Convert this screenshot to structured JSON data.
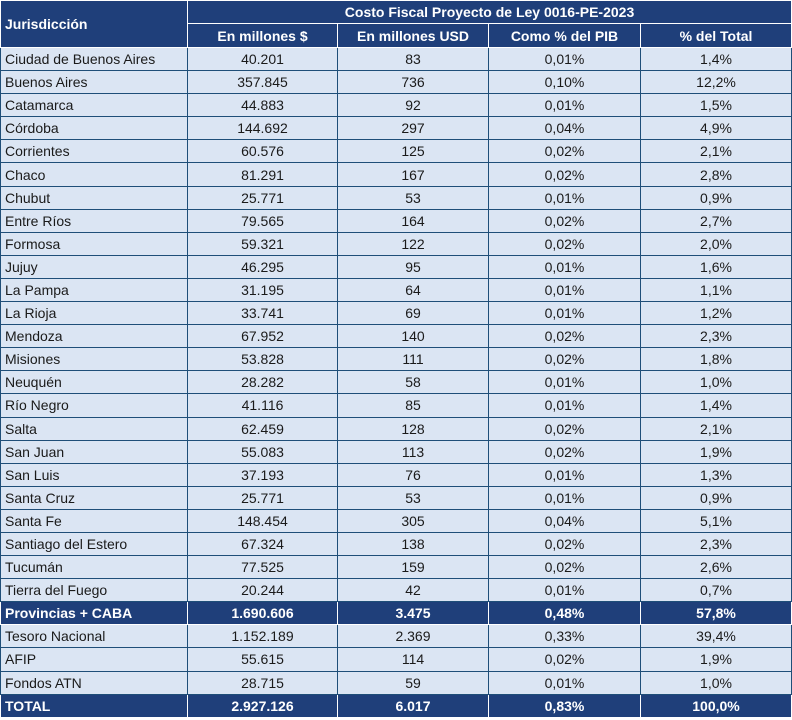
{
  "header": {
    "jurisdiction_label": "Jurisdicción",
    "group_title": "Costo Fiscal Proyecto de Ley 0016-PE-2023",
    "columns": [
      "En millones $",
      "En millones USD",
      "Como % del PIB",
      "% del Total"
    ]
  },
  "rows": [
    {
      "name": "Ciudad de Buenos Aires",
      "ars": "40.201",
      "usd": "83",
      "pib": "0,01%",
      "total": "1,4%"
    },
    {
      "name": "Buenos Aires",
      "ars": "357.845",
      "usd": "736",
      "pib": "0,10%",
      "total": "12,2%"
    },
    {
      "name": "Catamarca",
      "ars": "44.883",
      "usd": "92",
      "pib": "0,01%",
      "total": "1,5%"
    },
    {
      "name": "Córdoba",
      "ars": "144.692",
      "usd": "297",
      "pib": "0,04%",
      "total": "4,9%"
    },
    {
      "name": "Corrientes",
      "ars": "60.576",
      "usd": "125",
      "pib": "0,02%",
      "total": "2,1%"
    },
    {
      "name": "Chaco",
      "ars": "81.291",
      "usd": "167",
      "pib": "0,02%",
      "total": "2,8%"
    },
    {
      "name": "Chubut",
      "ars": "25.771",
      "usd": "53",
      "pib": "0,01%",
      "total": "0,9%"
    },
    {
      "name": "Entre Ríos",
      "ars": "79.565",
      "usd": "164",
      "pib": "0,02%",
      "total": "2,7%"
    },
    {
      "name": "Formosa",
      "ars": "59.321",
      "usd": "122",
      "pib": "0,02%",
      "total": "2,0%"
    },
    {
      "name": "Jujuy",
      "ars": "46.295",
      "usd": "95",
      "pib": "0,01%",
      "total": "1,6%"
    },
    {
      "name": "La Pampa",
      "ars": "31.195",
      "usd": "64",
      "pib": "0,01%",
      "total": "1,1%"
    },
    {
      "name": "La Rioja",
      "ars": "33.741",
      "usd": "69",
      "pib": "0,01%",
      "total": "1,2%"
    },
    {
      "name": "Mendoza",
      "ars": "67.952",
      "usd": "140",
      "pib": "0,02%",
      "total": "2,3%"
    },
    {
      "name": "Misiones",
      "ars": "53.828",
      "usd": "111",
      "pib": "0,02%",
      "total": "1,8%"
    },
    {
      "name": "Neuquén",
      "ars": "28.282",
      "usd": "58",
      "pib": "0,01%",
      "total": "1,0%"
    },
    {
      "name": "Río Negro",
      "ars": "41.116",
      "usd": "85",
      "pib": "0,01%",
      "total": "1,4%"
    },
    {
      "name": "Salta",
      "ars": "62.459",
      "usd": "128",
      "pib": "0,02%",
      "total": "2,1%"
    },
    {
      "name": "San Juan",
      "ars": "55.083",
      "usd": "113",
      "pib": "0,02%",
      "total": "1,9%"
    },
    {
      "name": "San Luis",
      "ars": "37.193",
      "usd": "76",
      "pib": "0,01%",
      "total": "1,3%"
    },
    {
      "name": "Santa Cruz",
      "ars": "25.771",
      "usd": "53",
      "pib": "0,01%",
      "total": "0,9%"
    },
    {
      "name": "Santa Fe",
      "ars": "148.454",
      "usd": "305",
      "pib": "0,04%",
      "total": "5,1%"
    },
    {
      "name": "Santiago del Estero",
      "ars": "67.324",
      "usd": "138",
      "pib": "0,02%",
      "total": "2,3%"
    },
    {
      "name": "Tucumán",
      "ars": "77.525",
      "usd": "159",
      "pib": "0,02%",
      "total": "2,6%"
    },
    {
      "name": "Tierra del Fuego",
      "ars": "20.244",
      "usd": "42",
      "pib": "0,01%",
      "total": "0,7%"
    }
  ],
  "subtotal": {
    "name": "Provincias + CABA",
    "ars": "1.690.606",
    "usd": "3.475",
    "pib": "0,48%",
    "total": "57,8%"
  },
  "national_rows": [
    {
      "name": "Tesoro Nacional",
      "ars": "1.152.189",
      "usd": "2.369",
      "pib": "0,33%",
      "total": "39,4%"
    },
    {
      "name": "AFIP",
      "ars": "55.615",
      "usd": "114",
      "pib": "0,02%",
      "total": "1,9%"
    },
    {
      "name": "Fondos ATN",
      "ars": "28.715",
      "usd": "59",
      "pib": "0,01%",
      "total": "1,0%"
    }
  ],
  "total": {
    "name": "TOTAL",
    "ars": "2.927.126",
    "usd": "6.017",
    "pib": "0,83%",
    "total": "100,0%"
  }
}
